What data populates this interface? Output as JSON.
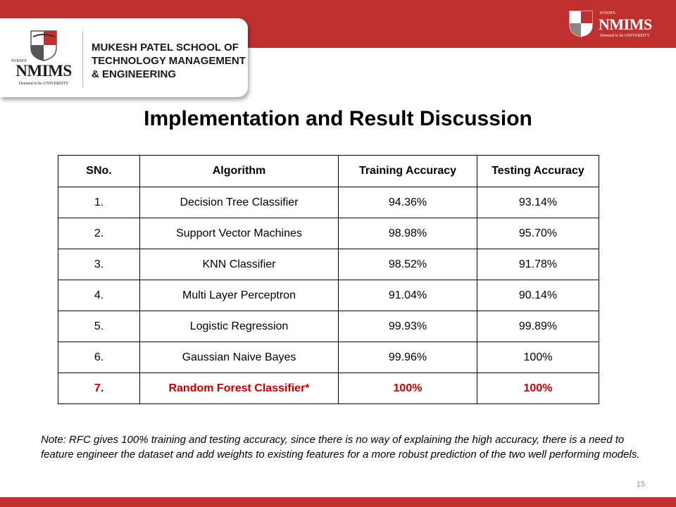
{
  "header": {
    "logo": {
      "svkm": "SVKM'S",
      "name": "NMIMS",
      "tagline": "Deemed to be UNIVERSITY"
    },
    "school_name": "MUKESH PATEL SCHOOL OF\nTECHNOLOGY MANAGEMENT\n& ENGINEERING",
    "small_logo": {
      "svkm": "SVKM'S",
      "name": "NMIMS",
      "tagline": "Deemed to be UNIVERSITY"
    },
    "colors": {
      "brand_red": "#c0302e",
      "highlight_red": "#c00000"
    }
  },
  "slide": {
    "title": "Implementation and Result Discussion",
    "table": {
      "headers": [
        "SNo.",
        "Algorithm",
        "Training Accuracy",
        "Testing Accuracy"
      ],
      "rows": [
        [
          "1.",
          "Decision Tree Classifier",
          "94.36%",
          "93.14%"
        ],
        [
          "2.",
          "Support Vector Machines",
          "98.98%",
          "95.70%"
        ],
        [
          "3.",
          "KNN Classifier",
          "98.52%",
          "91.78%"
        ],
        [
          "4.",
          "Multi Layer Perceptron",
          "91.04%",
          "90.14%"
        ],
        [
          "5.",
          "Logistic Regression",
          "99.93%",
          "99.89%"
        ],
        [
          "6.",
          "Gaussian Naive Bayes",
          "99.96%",
          "100%"
        ],
        [
          "7.",
          "Random Forest Classifier*",
          "100%",
          "100%"
        ]
      ]
    },
    "note": "Note: RFC gives 100% training and testing accuracy, since there is no way of explaining the high accuracy, there is a need to feature engineer the dataset and add weights to existing features for a more robust prediction of the two well performing models.",
    "page_number": "15"
  }
}
